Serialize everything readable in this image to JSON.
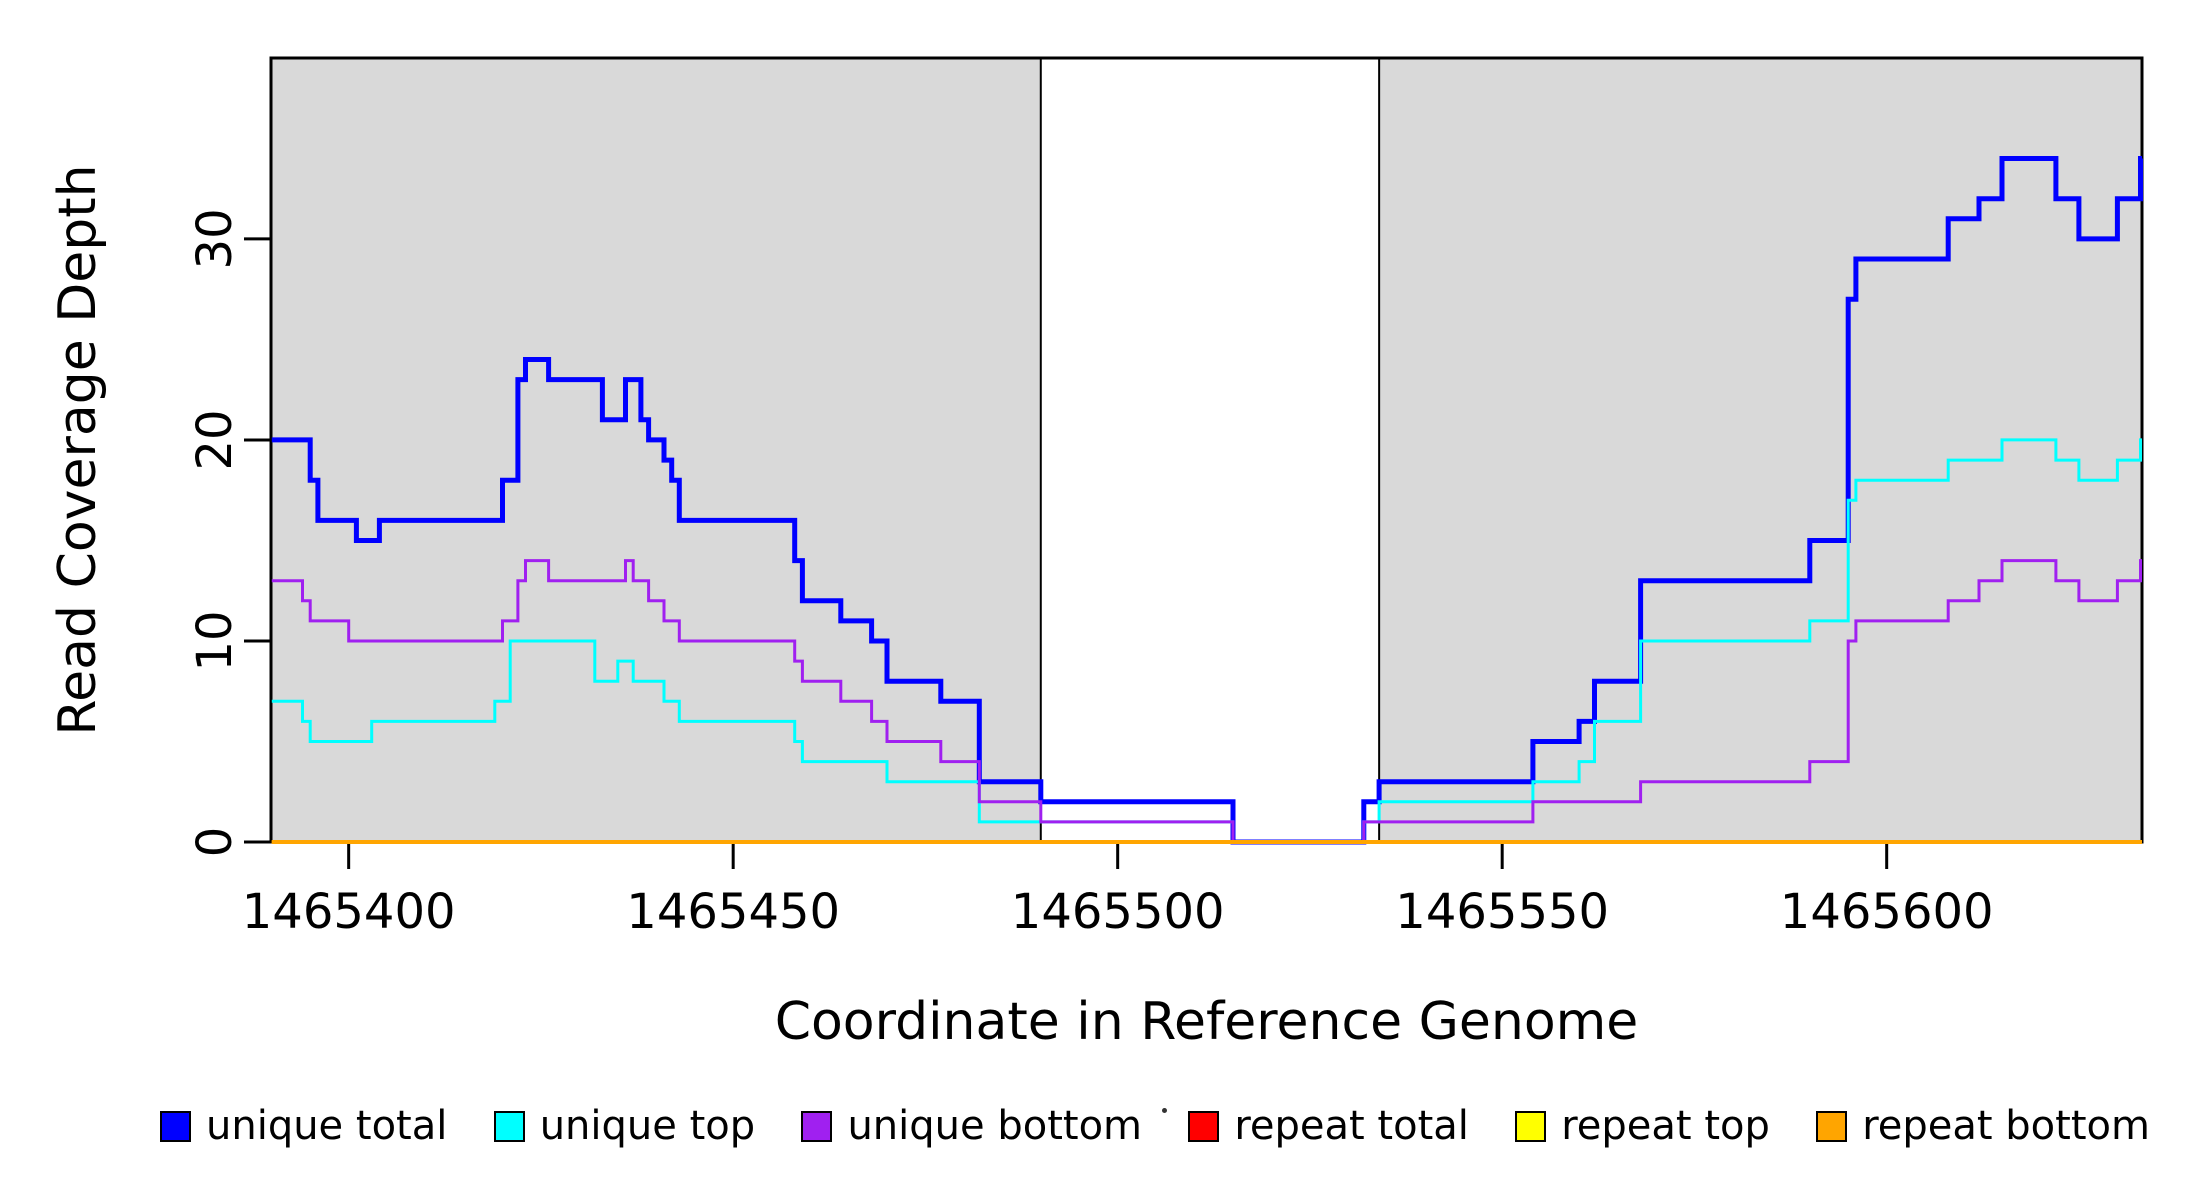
{
  "chart_data": {
    "type": "line",
    "subtype": "step",
    "title": "",
    "xlabel": "Coordinate in Reference Genome",
    "ylabel": "Read Coverage Depth",
    "xlim": [
      1465389.9,
      1465633.2
    ],
    "ylim": [
      0,
      39
    ],
    "xticks": [
      "1465400",
      "1465450",
      "1465500",
      "1465550",
      "1465600"
    ],
    "xtick_values": [
      1465400,
      1465450,
      1465500,
      1465550,
      1465600
    ],
    "yticks": [
      "0",
      "10",
      "20",
      "30"
    ],
    "ytick_values": [
      0,
      10,
      20,
      30
    ],
    "grid": false,
    "legend_position": "bottom",
    "plot_border_color": "#000000",
    "background_color": "#ffffff",
    "shaded_regions": [
      {
        "name": "unique-mappability-left",
        "x0": 1465389.9,
        "x1": 1465490,
        "color": "#d9d9d9"
      },
      {
        "name": "unique-mappability-right",
        "x0": 1465534,
        "x1": 1465633.2,
        "color": "#d9d9d9"
      }
    ],
    "series": [
      {
        "name": "unique total",
        "color": "#0000ff",
        "line_width": 5,
        "points": [
          [
            1465390,
            20
          ],
          [
            1465395,
            18
          ],
          [
            1465396,
            16
          ],
          [
            1465401,
            15
          ],
          [
            1465404,
            16
          ],
          [
            1465420,
            18
          ],
          [
            1465422,
            23
          ],
          [
            1465423,
            24
          ],
          [
            1465426,
            23
          ],
          [
            1465433,
            21
          ],
          [
            1465436,
            23
          ],
          [
            1465438,
            21
          ],
          [
            1465439,
            20
          ],
          [
            1465441,
            19
          ],
          [
            1465442,
            18
          ],
          [
            1465443,
            16
          ],
          [
            1465458,
            14
          ],
          [
            1465459,
            12
          ],
          [
            1465464,
            11
          ],
          [
            1465468,
            10
          ],
          [
            1465470,
            8
          ],
          [
            1465477,
            7
          ],
          [
            1465482,
            3
          ],
          [
            1465490,
            2
          ],
          [
            1465515,
            0
          ],
          [
            1465532,
            2
          ],
          [
            1465534,
            3
          ],
          [
            1465554,
            5
          ],
          [
            1465560,
            6
          ],
          [
            1465562,
            8
          ],
          [
            1465568,
            13
          ],
          [
            1465590,
            15
          ],
          [
            1465595,
            27
          ],
          [
            1465596,
            29
          ],
          [
            1465608,
            31
          ],
          [
            1465612,
            32
          ],
          [
            1465615,
            34
          ],
          [
            1465622,
            32
          ],
          [
            1465625,
            30
          ],
          [
            1465630,
            32
          ],
          [
            1465633,
            34
          ]
        ]
      },
      {
        "name": "unique top",
        "color": "#00ffff",
        "line_width": 3,
        "points": [
          [
            1465390,
            7
          ],
          [
            1465394,
            6
          ],
          [
            1465395,
            5
          ],
          [
            1465403,
            6
          ],
          [
            1465419,
            7
          ],
          [
            1465421,
            10
          ],
          [
            1465432,
            8
          ],
          [
            1465435,
            9
          ],
          [
            1465437,
            8
          ],
          [
            1465441,
            7
          ],
          [
            1465443,
            6
          ],
          [
            1465458,
            5
          ],
          [
            1465459,
            4
          ],
          [
            1465470,
            3
          ],
          [
            1465482,
            1
          ],
          [
            1465515,
            0
          ],
          [
            1465532,
            1
          ],
          [
            1465534,
            2
          ],
          [
            1465554,
            3
          ],
          [
            1465560,
            4
          ],
          [
            1465562,
            6
          ],
          [
            1465568,
            10
          ],
          [
            1465590,
            11
          ],
          [
            1465595,
            17
          ],
          [
            1465596,
            18
          ],
          [
            1465608,
            19
          ],
          [
            1465615,
            20
          ],
          [
            1465622,
            19
          ],
          [
            1465625,
            18
          ],
          [
            1465630,
            19
          ],
          [
            1465633,
            20
          ]
        ]
      },
      {
        "name": "unique bottom",
        "color": "#a020f0",
        "line_width": 3,
        "points": [
          [
            1465390,
            13
          ],
          [
            1465394,
            12
          ],
          [
            1465395,
            11
          ],
          [
            1465400,
            10
          ],
          [
            1465420,
            11
          ],
          [
            1465422,
            13
          ],
          [
            1465423,
            14
          ],
          [
            1465426,
            13
          ],
          [
            1465436,
            14
          ],
          [
            1465437,
            13
          ],
          [
            1465439,
            12
          ],
          [
            1465441,
            11
          ],
          [
            1465443,
            10
          ],
          [
            1465458,
            9
          ],
          [
            1465459,
            8
          ],
          [
            1465464,
            7
          ],
          [
            1465468,
            6
          ],
          [
            1465470,
            5
          ],
          [
            1465477,
            4
          ],
          [
            1465482,
            2
          ],
          [
            1465490,
            1
          ],
          [
            1465515,
            0
          ],
          [
            1465532,
            1
          ],
          [
            1465554,
            2
          ],
          [
            1465568,
            3
          ],
          [
            1465590,
            4
          ],
          [
            1465595,
            10
          ],
          [
            1465596,
            11
          ],
          [
            1465608,
            12
          ],
          [
            1465612,
            13
          ],
          [
            1465615,
            14
          ],
          [
            1465622,
            13
          ],
          [
            1465625,
            12
          ],
          [
            1465630,
            13
          ],
          [
            1465633,
            14
          ]
        ]
      },
      {
        "name": "repeat total",
        "color": "#ff0000",
        "line_width": 3,
        "points": [
          [
            1465390,
            0
          ]
        ]
      },
      {
        "name": "repeat top",
        "color": "#ffff00",
        "line_width": 3,
        "points": [
          [
            1465390,
            0
          ]
        ]
      },
      {
        "name": "repeat bottom",
        "color": "#ffa500",
        "line_width": 4,
        "points": [
          [
            1465390,
            0
          ]
        ]
      }
    ],
    "legend": [
      {
        "label": "unique total",
        "color": "#0000ff"
      },
      {
        "label": "unique top",
        "color": "#00ffff"
      },
      {
        "label": "unique bottom",
        "color": "#a020f0"
      },
      {
        "label": "repeat total",
        "color": "#ff0000"
      },
      {
        "label": "repeat top",
        "color": "#ffff00"
      },
      {
        "label": "repeat bottom",
        "color": "#ffa500"
      }
    ]
  }
}
